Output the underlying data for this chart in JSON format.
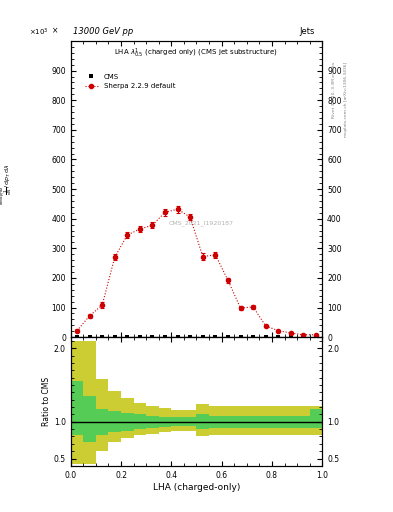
{
  "title_top_left": "13000 GeV pp",
  "title_top_right": "Jets",
  "plot_title": "LHA $\\lambda^{1}_{0.5}$ (charged only) (CMS jet substructure)",
  "cms_label": "CMS",
  "sherpa_label": "Sherpa 2.2.9 default",
  "watermark": "CMS_2021_I1920187",
  "rivet_label": "Rivet 3.1.10, 3.3M events",
  "arxiv_label": "mcplots.cern.ch [arXiv:1306.3436]",
  "xlabel": "LHA (charged-only)",
  "ylabel_ratio": "Ratio to CMS",
  "ylim_main": [
    0,
    1000
  ],
  "ylim_ratio": [
    0.4,
    2.15
  ],
  "yticks_main": [
    0,
    100,
    200,
    300,
    400,
    500,
    600,
    700,
    800,
    900
  ],
  "yticks_ratio": [
    0.5,
    1.0,
    2.0
  ],
  "xlim": [
    0.0,
    1.0
  ],
  "sherpa_x": [
    0.025,
    0.075,
    0.125,
    0.175,
    0.225,
    0.275,
    0.325,
    0.375,
    0.425,
    0.475,
    0.525,
    0.575,
    0.625,
    0.675,
    0.725,
    0.775,
    0.825,
    0.875,
    0.925,
    0.975
  ],
  "sherpa_y": [
    22,
    72,
    108,
    270,
    345,
    365,
    378,
    422,
    432,
    405,
    272,
    278,
    192,
    98,
    102,
    38,
    22,
    14,
    8,
    8
  ],
  "sherpa_yerr": [
    4,
    7,
    9,
    11,
    11,
    11,
    11,
    12,
    12,
    11,
    11,
    11,
    9,
    7,
    7,
    4,
    3,
    2,
    2,
    2
  ],
  "cms_x": [
    0.025,
    0.075,
    0.125,
    0.175,
    0.225,
    0.275,
    0.325,
    0.375,
    0.425,
    0.475,
    0.525,
    0.575,
    0.625,
    0.675,
    0.725,
    0.775,
    0.825,
    0.875,
    0.925,
    0.975
  ],
  "cms_y": [
    2,
    2,
    2,
    2,
    2,
    2,
    2,
    2,
    2,
    2,
    2,
    2,
    2,
    2,
    2,
    2,
    2,
    2,
    2,
    2
  ],
  "ratio_x_edges": [
    0.0,
    0.05,
    0.1,
    0.15,
    0.2,
    0.25,
    0.3,
    0.35,
    0.4,
    0.45,
    0.5,
    0.55,
    0.6,
    0.65,
    0.7,
    0.75,
    0.8,
    0.85,
    0.9,
    0.95,
    1.0
  ],
  "ratio_green_lo": [
    0.82,
    0.72,
    0.82,
    0.86,
    0.88,
    0.9,
    0.92,
    0.93,
    0.94,
    0.94,
    0.9,
    0.92,
    0.92,
    0.92,
    0.92,
    0.92,
    0.92,
    0.92,
    0.92,
    0.92
  ],
  "ratio_green_hi": [
    1.55,
    1.35,
    1.18,
    1.14,
    1.12,
    1.1,
    1.08,
    1.07,
    1.06,
    1.06,
    1.1,
    1.08,
    1.08,
    1.08,
    1.08,
    1.08,
    1.08,
    1.08,
    1.08,
    1.18
  ],
  "ratio_yellow_lo": [
    0.42,
    0.42,
    0.6,
    0.72,
    0.78,
    0.82,
    0.84,
    0.86,
    0.87,
    0.87,
    0.8,
    0.82,
    0.82,
    0.82,
    0.82,
    0.82,
    0.82,
    0.82,
    0.82,
    0.82
  ],
  "ratio_yellow_hi": [
    2.1,
    2.1,
    1.58,
    1.42,
    1.32,
    1.26,
    1.22,
    1.19,
    1.16,
    1.16,
    1.24,
    1.22,
    1.22,
    1.22,
    1.22,
    1.22,
    1.22,
    1.22,
    1.22,
    1.22
  ],
  "color_sherpa": "#cc0000",
  "color_cms": "black",
  "color_green_band": "#55cc55",
  "color_yellow_band": "#cccc33",
  "background_color": "white"
}
